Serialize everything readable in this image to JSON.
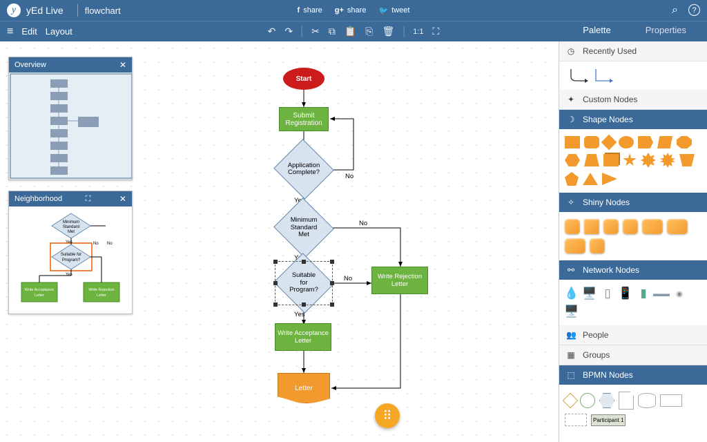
{
  "app": {
    "name": "yEd Live",
    "doc": "flowchart"
  },
  "header_share": [
    {
      "icon": "f",
      "label": "share"
    },
    {
      "icon": "g+",
      "label": "share"
    },
    {
      "icon": "🐦",
      "label": "tweet"
    }
  ],
  "header_icons": {
    "search": "⌕",
    "help": "?"
  },
  "menubar": {
    "edit": "Edit",
    "layout": "Layout"
  },
  "toolbar": {
    "undo": "↶",
    "redo": "↷",
    "cut": "✂",
    "copy": "⧉",
    "paste": "📋",
    "dup": "⎘",
    "trash": "🗑",
    "fit": "1:1",
    "full": "⛶"
  },
  "tabs": {
    "palette": "Palette",
    "properties": "Properties"
  },
  "panels": {
    "overview": {
      "title": "Overview"
    },
    "neighborhood": {
      "title": "Neighborhood"
    }
  },
  "neighborhood_mini": {
    "n1": "Minimum\\nStandard\\nMet",
    "n2": "Suitable for\\nProgram?",
    "n3": "Write Acceptance\\nLetter",
    "n4": "Write Rejection\\nLetter",
    "yes": "Yes",
    "no": "No"
  },
  "flow": {
    "start": "Start",
    "submit": "Submit\\nRegistration",
    "app_complete": "Application\\nComplete?",
    "min_std": "Minimum\\nStandard\\nMet",
    "suitable": "Suitable for\\nProgram?",
    "reject": "Write Rejection\\nLetter",
    "accept": "Write Acceptance\\nLetter",
    "letter": "Letter",
    "yes": "Yes",
    "no": "No"
  },
  "palette": {
    "recently_used": "Recently Used",
    "custom": "Custom Nodes",
    "shape": "Shape Nodes",
    "shiny": "Shiny Nodes",
    "network": "Network Nodes",
    "people": "People",
    "groups": "Groups",
    "bpmn": "BPMN Nodes",
    "participant": "Participant 1"
  },
  "colors": {
    "brand": "#3b6a99",
    "start": "#cc1b1b",
    "process": "#6db33f",
    "decision_fill": "#d7e3ef",
    "decision_border": "#6a8aae",
    "document": "#f29a2e"
  }
}
